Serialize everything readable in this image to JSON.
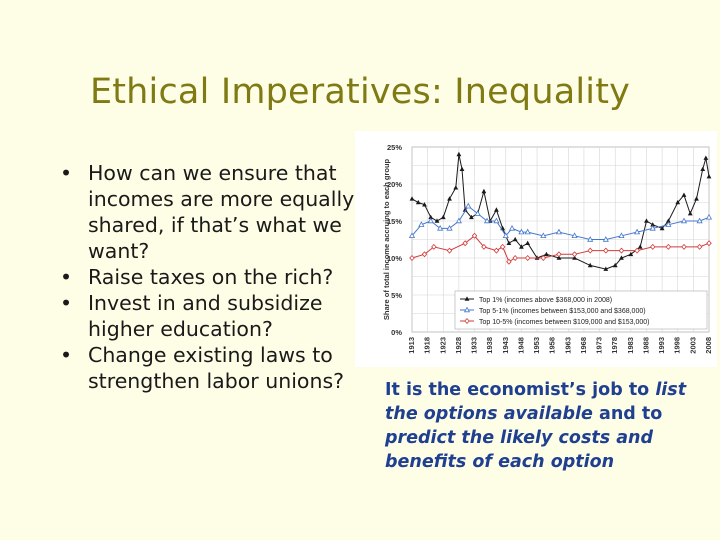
{
  "slide": {
    "title": "Ethical Imperatives: Inequality",
    "bullets": [
      "How can we ensure that incomes are more equally shared, if that’s what we want?",
      "Raise taxes on the rich?",
      "Invest in and subsidize higher education?",
      "Change existing laws to strengthen labor unions?"
    ],
    "caption": {
      "t1": "It is the economist’s job to ",
      "t2": "list the options available",
      "t3": " and to ",
      "t4": "predict the likely costs and benefits of each option"
    }
  },
  "chart_data": {
    "type": "line",
    "title": "",
    "xlabel": "",
    "ylabel": "Share of total income accruing to each group",
    "xlim": [
      1913,
      2008
    ],
    "ylim": [
      0,
      25
    ],
    "y_ticks": [
      "0%",
      "5%",
      "10%",
      "15%",
      "20%",
      "25%"
    ],
    "x_ticks": [
      "1913",
      "1918",
      "1923",
      "1928",
      "1933",
      "1938",
      "1943",
      "1948",
      "1953",
      "1958",
      "1963",
      "1968",
      "1973",
      "1978",
      "1983",
      "1988",
      "1993",
      "1998",
      "2003",
      "2008"
    ],
    "legend_position": "bottom-right",
    "grid": true,
    "series": [
      {
        "name": "Top 1% (incomes above $368,000 in 2008)",
        "color": "#1a1a1a",
        "marker": "triangle",
        "x": [
          1913,
          1915,
          1917,
          1919,
          1921,
          1923,
          1925,
          1927,
          1928,
          1929,
          1930,
          1932,
          1934,
          1936,
          1938,
          1940,
          1942,
          1944,
          1946,
          1948,
          1950,
          1953,
          1956,
          1960,
          1965,
          1970,
          1975,
          1978,
          1980,
          1983,
          1986,
          1988,
          1990,
          1993,
          1995,
          1998,
          2000,
          2002,
          2004,
          2006,
          2007,
          2008
        ],
        "y": [
          18,
          17.5,
          17.2,
          15.5,
          15,
          15.5,
          18,
          19.5,
          24,
          22,
          16.5,
          15.5,
          16,
          19,
          15,
          16.5,
          14,
          12,
          12.5,
          11.5,
          12,
          10,
          10.5,
          10,
          10,
          9,
          8.5,
          9,
          10,
          10.5,
          11.5,
          15,
          14.5,
          14,
          15,
          17.5,
          18.5,
          16,
          18,
          22,
          23.5,
          21
        ]
      },
      {
        "name": "Top 5-1% (incomes between $153,000 and $368,000)",
        "color": "#4477cc",
        "marker": "triangle-open",
        "x": [
          1913,
          1916,
          1919,
          1922,
          1925,
          1928,
          1931,
          1934,
          1937,
          1940,
          1943,
          1945,
          1948,
          1950,
          1955,
          1960,
          1965,
          1970,
          1975,
          1980,
          1985,
          1990,
          1995,
          2000,
          2005,
          2008
        ],
        "y": [
          13,
          14.5,
          15,
          14,
          14,
          15,
          17,
          16,
          15,
          15,
          13,
          14,
          13.5,
          13.5,
          13,
          13.5,
          13,
          12.5,
          12.5,
          13,
          13.5,
          14,
          14.5,
          15,
          15,
          15.5
        ]
      },
      {
        "name": "Top 10-5% (incomes between $109,000 and $153,000)",
        "color": "#d43a3a",
        "marker": "diamond-open",
        "x": [
          1913,
          1917,
          1920,
          1925,
          1930,
          1933,
          1936,
          1940,
          1942,
          1944,
          1946,
          1950,
          1955,
          1960,
          1965,
          1970,
          1975,
          1980,
          1985,
          1990,
          1995,
          2000,
          2005,
          2008
        ],
        "y": [
          10,
          10.5,
          11.5,
          11,
          12,
          13,
          11.5,
          11,
          11.5,
          9.5,
          10,
          10,
          10,
          10.5,
          10.5,
          11,
          11,
          11,
          11,
          11.5,
          11.5,
          11.5,
          11.5,
          12
        ]
      }
    ]
  }
}
